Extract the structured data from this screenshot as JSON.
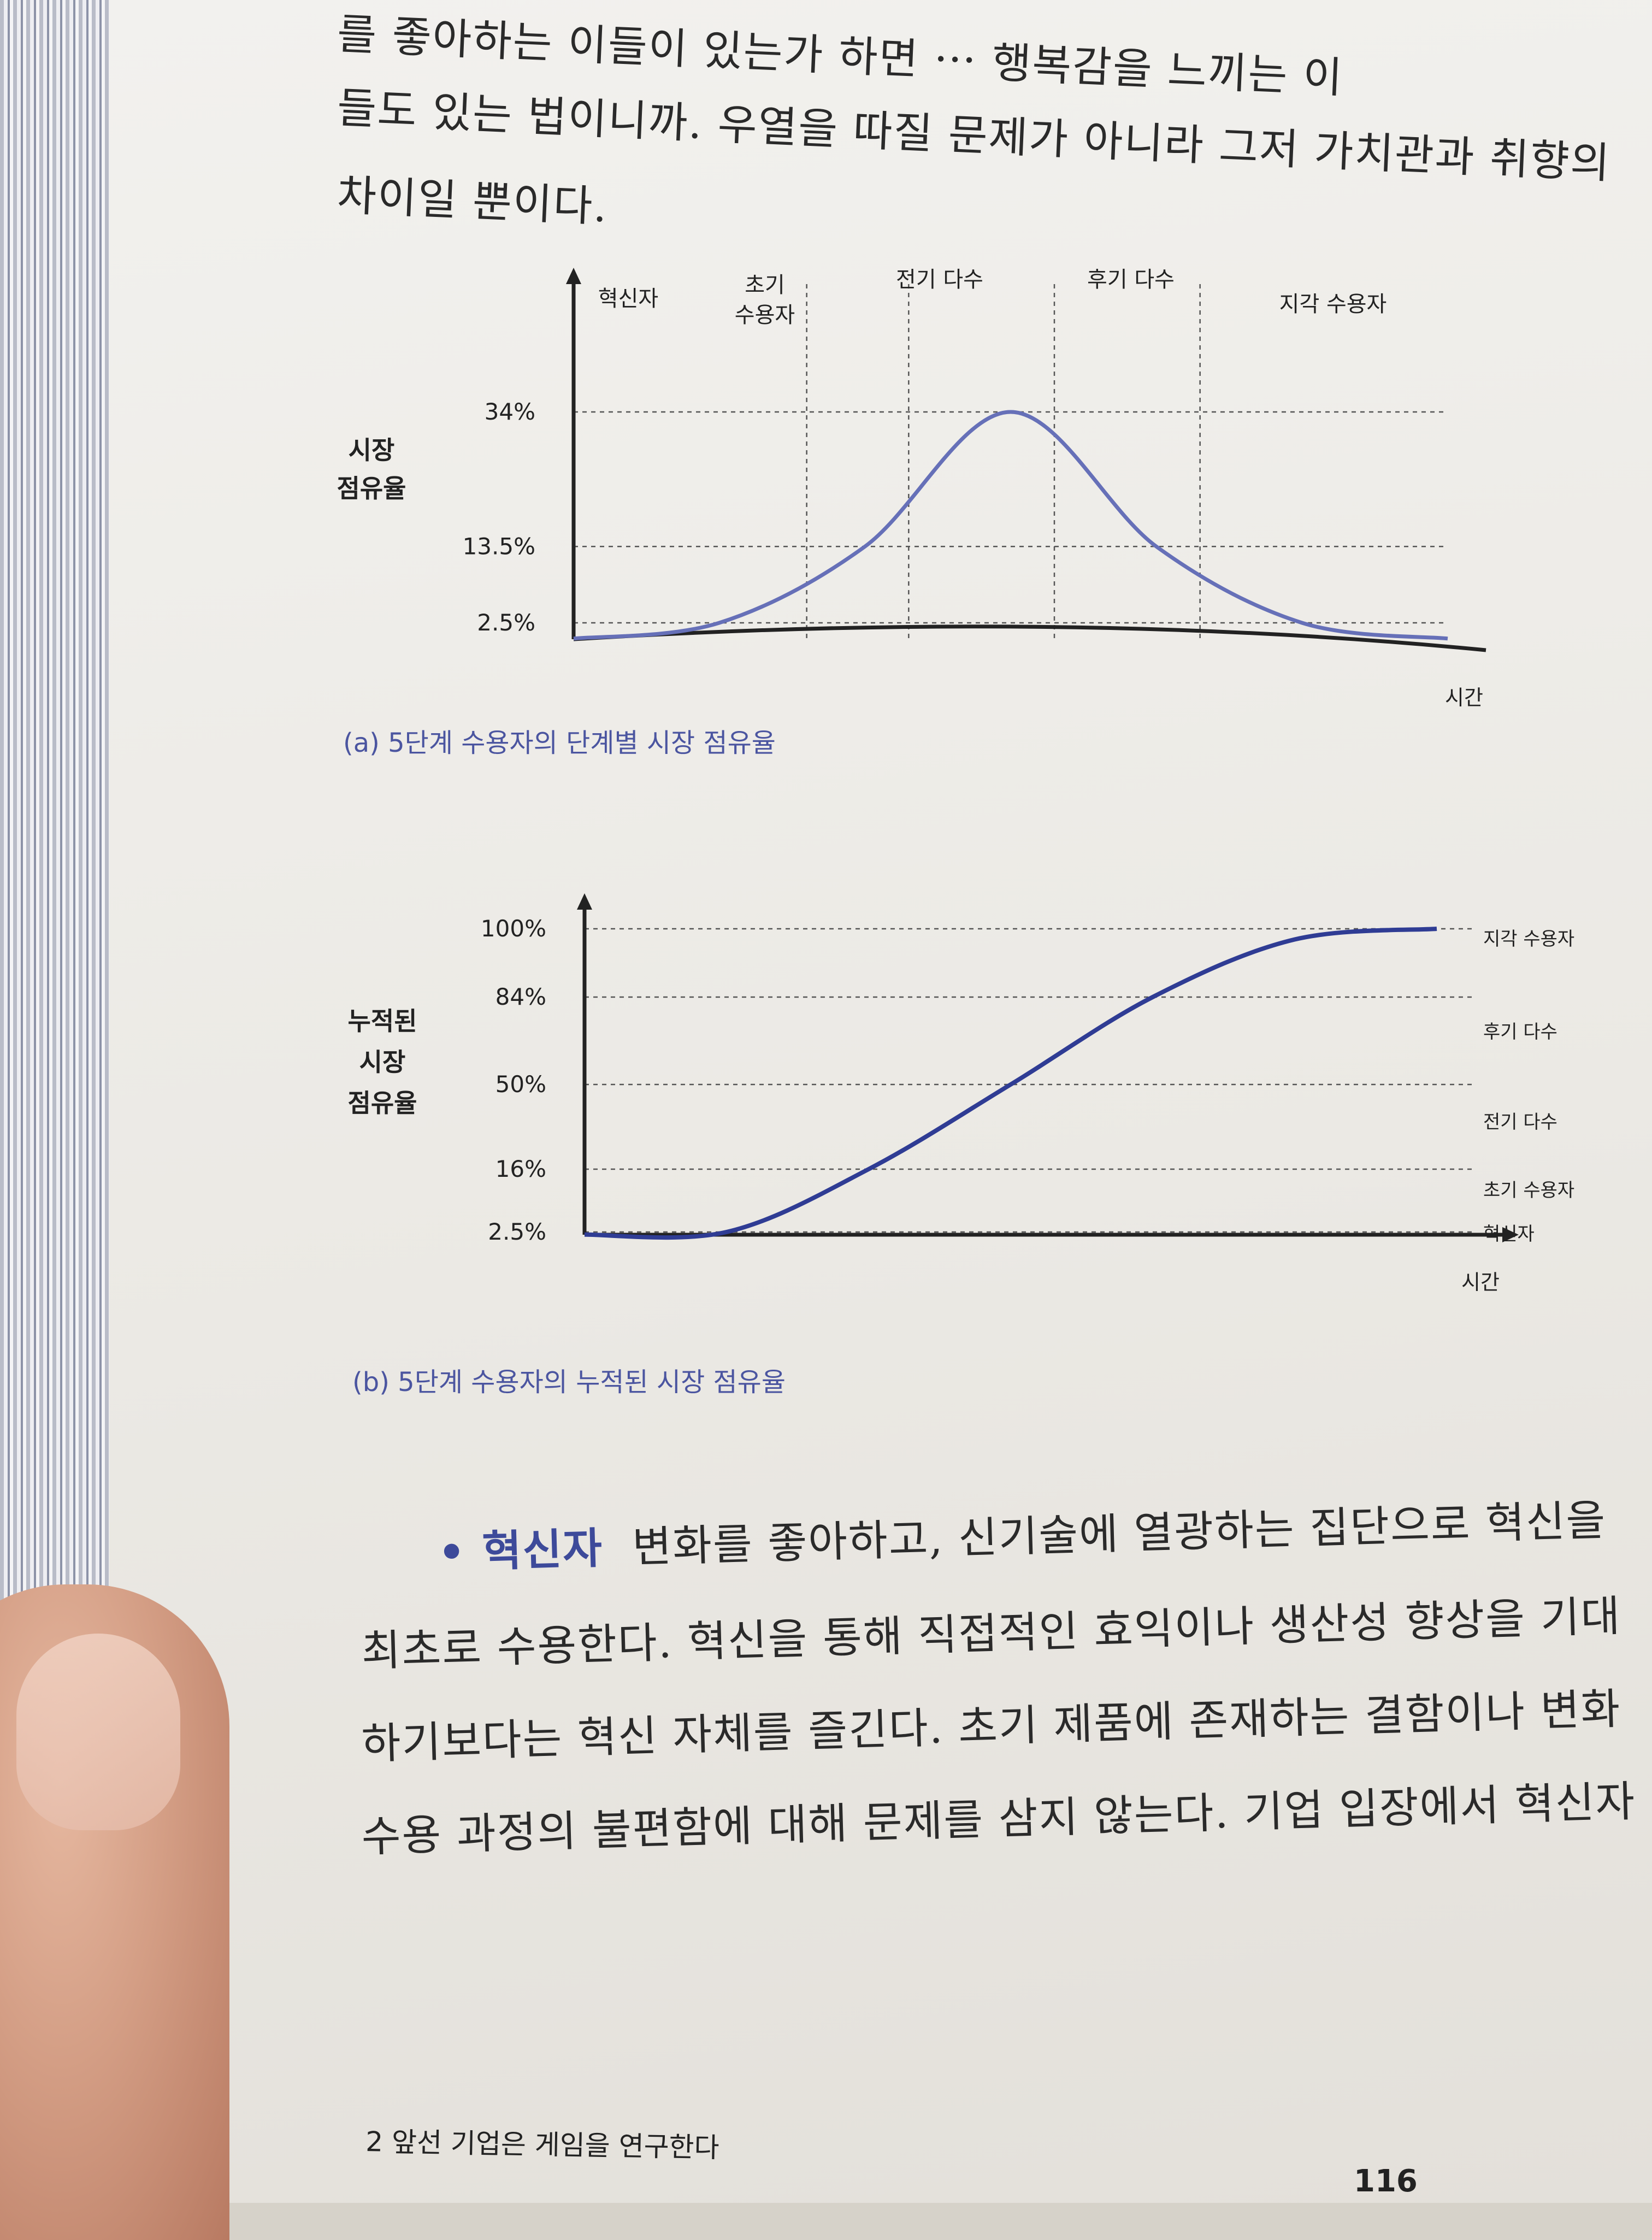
{
  "page": {
    "top_paragraph": [
      "를 좋아하는 이들이 있는가 하면 ⋯ 행복감을 느끼는 이",
      "들도 있는 법이니까. 우열을 따질 문제가 아니라 그저 가치관과 취향의",
      "차이일 뿐이다."
    ],
    "figure_a": {
      "caption": "(a) 5단계 수용자의 단계별 시장 점유율"
    },
    "figure_b": {
      "caption": "(b) 5단계 수용자의 누적된 시장 점유율"
    },
    "bullet_term": "• 혁신자",
    "bottom_paragraph": [
      "변화를 좋아하고, 신기술에 열광하는 집단으로 혁신을",
      "최초로 수용한다. 혁신을 통해 직접적인 효익이나 생산성 향상을 기대",
      "하기보다는 혁신 자체를 즐긴다. 초기 제품에 존재하는 결함이나 변화",
      "수용 과정의 불편함에 대해 문제를 삼지 않는다. 기업 입장에서 혁신자"
    ],
    "footer": {
      "chapter_title": "2  앞선 기업은 게임을 연구한다",
      "page_number": "116"
    }
  },
  "chart_data": [
    {
      "type": "line",
      "title": "",
      "ylabel": "시장 점유율",
      "xlabel": "시간",
      "segments": [
        "혁신자",
        "초기 수용자",
        "전기 다수",
        "후기 다수",
        "지각 수용자"
      ],
      "yticks": [
        "2.5%",
        "13.5%",
        "34%"
      ],
      "x": [
        0,
        1,
        2,
        3,
        4,
        5,
        6
      ],
      "series": [
        {
          "values": [
            0.1,
            2.5,
            13.5,
            34,
            13.5,
            2.5,
            0.1
          ]
        }
      ],
      "grid": "dashed"
    },
    {
      "type": "line",
      "title": "",
      "ylabel": "누적된 시장 점유율",
      "xlabel": "시간",
      "yticks": [
        "2.5%",
        "16%",
        "50%",
        "84%",
        "100%"
      ],
      "right_labels": [
        "지각 수용자",
        "후기 다수",
        "전기 다수",
        "초기 수용자",
        "혁신자"
      ],
      "x": [
        0,
        1,
        2,
        3,
        4,
        5,
        6
      ],
      "series": [
        {
          "values": [
            0.1,
            2.5,
            16,
            50,
            84,
            97.5,
            100
          ]
        }
      ],
      "ylim": [
        0,
        100
      ],
      "grid": "dashed"
    }
  ]
}
